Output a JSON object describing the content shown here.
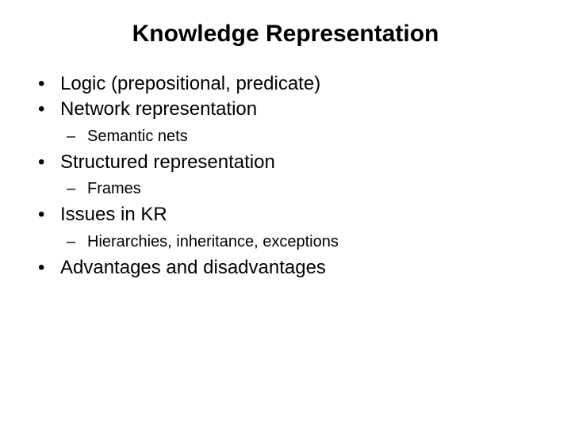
{
  "title": "Knowledge Representation",
  "title_fontsize": 30,
  "bullet_fontsize": 24,
  "sub_fontsize": 20,
  "background_color": "#ffffff",
  "text_color": "#000000",
  "bullets": {
    "item0": "Logic (prepositional, predicate)",
    "item1": "Network representation",
    "item1_sub0": "Semantic nets",
    "item2": "Structured representation",
    "item2_sub0": "Frames",
    "item3": "Issues in KR",
    "item3_sub0": "Hierarchies, inheritance, exceptions",
    "item4": "Advantages and disadvantages"
  }
}
